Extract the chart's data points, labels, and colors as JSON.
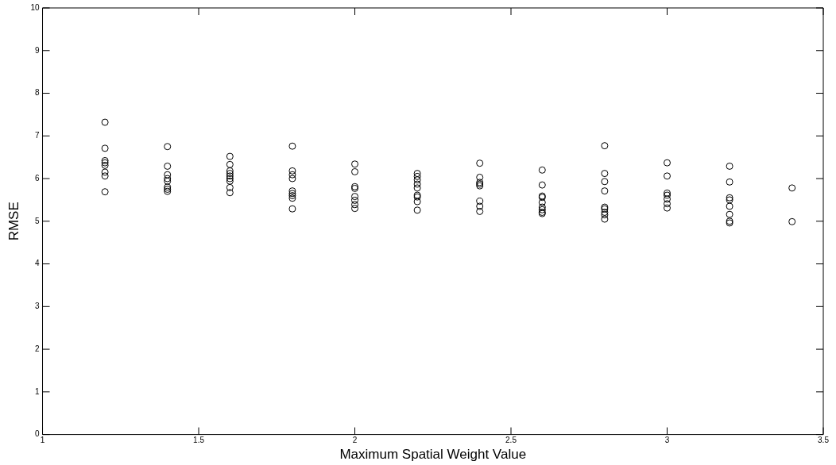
{
  "chart_data": {
    "type": "scatter",
    "xlabel": "Maximum Spatial Weight Value",
    "ylabel": "RMSE",
    "marker": "circle",
    "grid": false,
    "legend": false,
    "xlim": [
      1,
      3.5
    ],
    "xticks": [
      1,
      1.5,
      2,
      2.5,
      3,
      3.5
    ],
    "ylim": [
      0,
      10
    ],
    "yticks": [
      0,
      1,
      2,
      3,
      4,
      5,
      6,
      7,
      8,
      9,
      10
    ],
    "series": [
      {
        "color": "#000000",
        "x": [
          1.2,
          1.2,
          1.2,
          1.2,
          1.2,
          1.2,
          1.2,
          1.2,
          1.4,
          1.4,
          1.4,
          1.4,
          1.4,
          1.4,
          1.4,
          1.4,
          1.6,
          1.6,
          1.6,
          1.6,
          1.6,
          1.6,
          1.6,
          1.6,
          1.6,
          1.8,
          1.8,
          1.8,
          1.8,
          1.8,
          1.8,
          1.8,
          1.8,
          1.8,
          2,
          2,
          2,
          2,
          2,
          2,
          2,
          2,
          2.2,
          2.2,
          2.2,
          2.2,
          2.2,
          2.2,
          2.2,
          2.2,
          2.2,
          2.4,
          2.4,
          2.4,
          2.4,
          2.4,
          2.4,
          2.4,
          2.4,
          2.6,
          2.6,
          2.6,
          2.6,
          2.6,
          2.6,
          2.6,
          2.6,
          2.6,
          2.8,
          2.8,
          2.8,
          2.8,
          2.8,
          2.8,
          2.8,
          2.8,
          2.8,
          3,
          3,
          3,
          3,
          3,
          3,
          3,
          3.2,
          3.2,
          3.2,
          3.2,
          3.2,
          3.2,
          3.2,
          3.2,
          3.4,
          3.4
        ],
        "values": [
          7.32,
          6.71,
          6.42,
          6.37,
          6.31,
          6.15,
          6.06,
          5.69,
          6.75,
          6.29,
          6.09,
          6.0,
          5.94,
          5.8,
          5.75,
          5.7,
          6.52,
          6.33,
          6.18,
          6.12,
          6.06,
          6.0,
          5.94,
          5.79,
          5.67,
          6.76,
          6.18,
          6.09,
          6.0,
          5.71,
          5.65,
          5.6,
          5.54,
          5.29,
          6.34,
          6.16,
          5.81,
          5.77,
          5.58,
          5.49,
          5.39,
          5.3,
          6.12,
          6.05,
          5.97,
          5.87,
          5.78,
          5.61,
          5.57,
          5.46,
          5.26,
          6.36,
          6.03,
          5.91,
          5.87,
          5.83,
          5.47,
          5.35,
          5.23,
          6.2,
          5.85,
          5.59,
          5.56,
          5.44,
          5.33,
          5.27,
          5.21,
          5.18,
          6.77,
          6.12,
          5.93,
          5.71,
          5.33,
          5.29,
          5.21,
          5.15,
          5.05,
          6.37,
          6.06,
          5.66,
          5.61,
          5.52,
          5.41,
          5.31,
          6.29,
          5.92,
          5.55,
          5.5,
          5.35,
          5.16,
          5.0,
          4.96,
          5.78,
          4.99
        ]
      }
    ]
  }
}
